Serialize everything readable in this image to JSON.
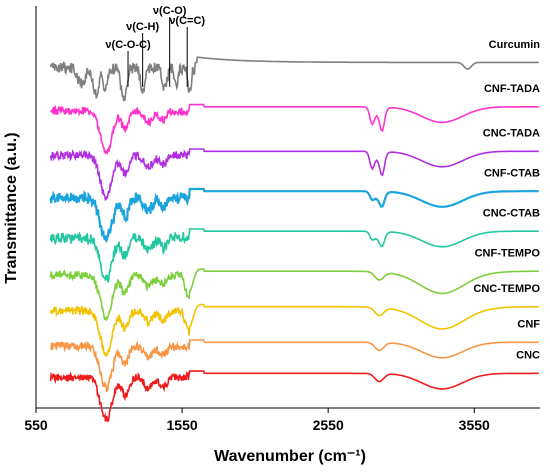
{
  "chart_data": {
    "type": "line",
    "title": "",
    "xlabel": "Wavenumber (cm⁻¹)",
    "ylabel": "Transmittance (a.u.)",
    "xlim": [
      550,
      4000
    ],
    "x_ticks": [
      550,
      1550,
      2550,
      3550
    ],
    "x_tick_labels": [
      "550",
      "1550",
      "2550",
      "3550"
    ],
    "y_ticks_shown": false,
    "grid": false,
    "annotations": [
      {
        "label": "ν(C-O-C)",
        "x": 1180
      },
      {
        "label": "ν(C-H)",
        "x": 1280
      },
      {
        "label": "ν(C-O)",
        "x": 1465
      },
      {
        "label": "ν(C=C)",
        "x": 1585
      }
    ],
    "series": [
      {
        "name": "Curcumin",
        "color": "#7f7f7f",
        "offset": 8.0,
        "style": "curcumin"
      },
      {
        "name": "CNF-TADA",
        "color": "#ff33cc",
        "offset": 7.0,
        "style": "tada"
      },
      {
        "name": "CNC-TADA",
        "color": "#b02fe0",
        "offset": 6.0,
        "style": "tada2"
      },
      {
        "name": "CNF-CTAB",
        "color": "#1aa3dc",
        "offset": 5.1,
        "style": "ctab"
      },
      {
        "name": "CNC-CTAB",
        "color": "#22c7a0",
        "offset": 4.2,
        "style": "ctab2"
      },
      {
        "name": "CNF-TEMPO",
        "color": "#7ccf3c",
        "offset": 3.3,
        "style": "tempo"
      },
      {
        "name": "CNC-TEMPO",
        "color": "#f2c200",
        "offset": 2.5,
        "style": "tempo2"
      },
      {
        "name": "CNF",
        "color": "#f79646",
        "offset": 1.7,
        "style": "cellulose"
      },
      {
        "name": "CNC",
        "color": "#ee1c1c",
        "offset": 1.0,
        "style": "cellulose2"
      }
    ]
  }
}
